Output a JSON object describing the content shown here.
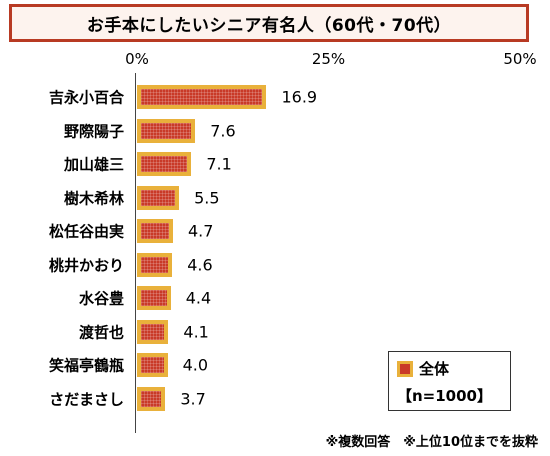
{
  "chart_data": {
    "type": "bar",
    "orientation": "horizontal",
    "title": "お手本にしたいシニア有名人（60代・70代）",
    "categories": [
      "吉永小百合",
      "野際陽子",
      "加山雄三",
      "樹木希林",
      "松任谷由実",
      "桃井かおり",
      "水谷豊",
      "渡哲也",
      "笑福亭鶴瓶",
      "さだまさし"
    ],
    "values": [
      16.9,
      7.6,
      7.1,
      5.5,
      4.7,
      4.6,
      4.4,
      4.1,
      4.0,
      3.7
    ],
    "value_labels": [
      "16.9",
      "7.6",
      "7.1",
      "5.5",
      "4.7",
      "4.6",
      "4.4",
      "4.1",
      "4.0",
      "3.7"
    ],
    "xlim": [
      0,
      50
    ],
    "ticks": [
      0,
      25,
      50
    ],
    "tick_labels": [
      "0%",
      "25%",
      "50%"
    ],
    "grid": false,
    "legend": {
      "label": "全体",
      "n_label": "【n=1000】",
      "placement": "bottom-right"
    },
    "colors": {
      "bar_fill": "#c93a28",
      "bar_border": "#e9b13b",
      "title_border": "#b83a23"
    }
  },
  "note": "※複数回答　※上位10位までを抜粋"
}
